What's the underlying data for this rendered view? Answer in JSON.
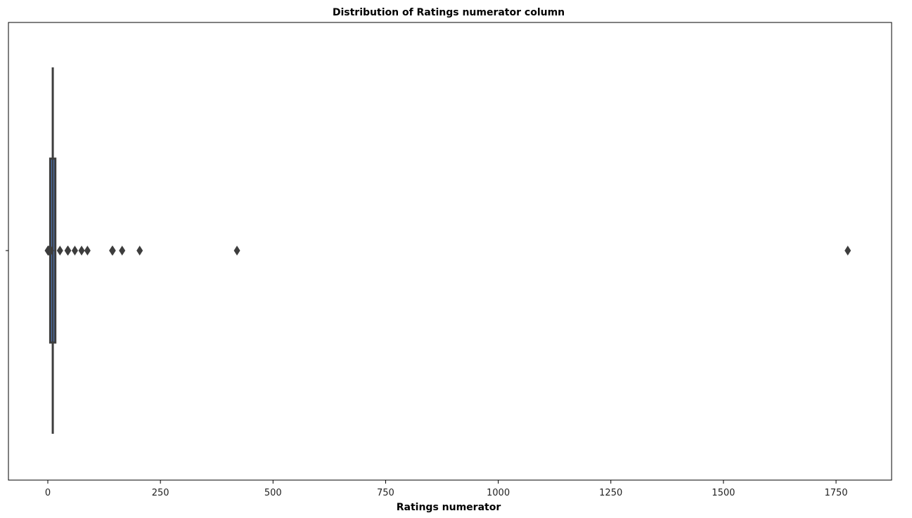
{
  "chart_data": {
    "type": "boxplot",
    "orientation": "horizontal",
    "title": "Distribution of Ratings numerator column",
    "xlabel": "Ratings numerator",
    "ylabel": "",
    "xlim": [
      -20,
      1865
    ],
    "xticks": [
      0,
      250,
      500,
      750,
      1000,
      1250,
      1500,
      1750
    ],
    "xtick_labels": [
      "0",
      "250",
      "500",
      "750",
      "1000",
      "1250",
      "1500",
      "1750"
    ],
    "grid": false,
    "box": {
      "whisker_low": 10,
      "q1": 10,
      "median": 11,
      "q3": 12,
      "whisker_high": 14
    },
    "outliers": [
      0,
      1,
      2,
      3,
      4,
      5,
      6,
      7,
      27,
      44,
      45,
      60,
      75,
      88,
      143,
      144,
      165,
      204,
      420,
      1776
    ],
    "colors": {
      "box_fill": "#4c72b0",
      "box_edge": "#3d3d3d",
      "outlier": "#3d3d3d",
      "axis": "#000000"
    }
  }
}
